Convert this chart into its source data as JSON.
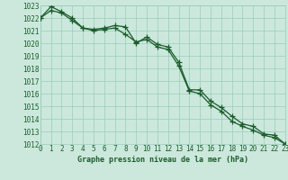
{
  "title": "Graphe pression niveau de la mer (hPa)",
  "background_color": "#cce8dd",
  "grid_color": "#99ccbb",
  "line_color": "#1a5c2a",
  "marker_color": "#1a5c2a",
  "x_values": [
    0,
    1,
    2,
    3,
    4,
    5,
    6,
    7,
    8,
    9,
    10,
    11,
    12,
    13,
    14,
    15,
    16,
    17,
    18,
    19,
    20,
    21,
    22,
    23
  ],
  "line1": [
    1022.0,
    1022.9,
    1022.5,
    1022.0,
    1021.2,
    1021.1,
    1021.2,
    1021.4,
    1021.3,
    1020.0,
    1020.5,
    1019.9,
    1019.7,
    1018.5,
    1016.3,
    1016.3,
    1015.4,
    1014.9,
    1014.2,
    1013.6,
    1013.4,
    1012.8,
    1012.7,
    1012.0
  ],
  "line2": [
    1022.0,
    1022.6,
    1022.4,
    1021.8,
    1021.2,
    1021.0,
    1021.1,
    1021.2,
    1020.7,
    1020.1,
    1020.3,
    1019.7,
    1019.5,
    1018.2,
    1016.2,
    1016.0,
    1015.1,
    1014.6,
    1013.8,
    1013.4,
    1013.1,
    1012.7,
    1012.5,
    1012.0
  ],
  "ylim_min": 1012,
  "ylim_max": 1023,
  "ytick_step": 1,
  "font_color": "#1a5c2a",
  "xlabel_fontsize": 6.0,
  "tick_fontsize": 5.5
}
